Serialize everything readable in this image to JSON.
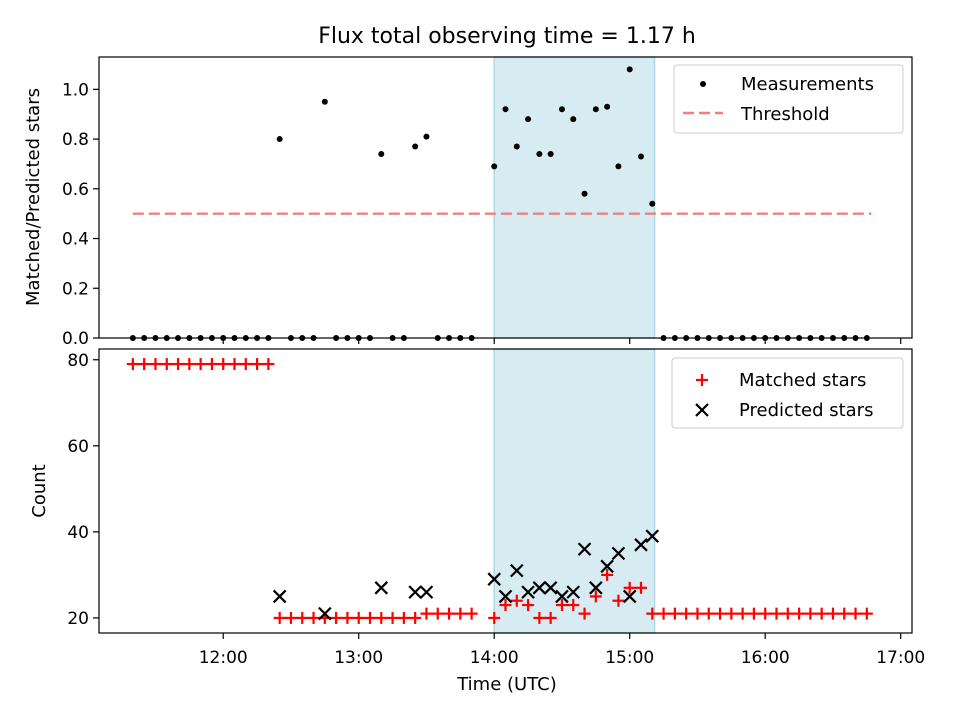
{
  "title": "Flux total observing time = 1.17 h",
  "colors": {
    "highlight": "#add8e6",
    "threshold": "#f08080",
    "matched": "#ff0000",
    "predicted": "#000000",
    "measurement": "#000000"
  },
  "chart_data": [
    {
      "type": "scatter",
      "ylabel": "Matched/Predicted stars",
      "ylim": [
        0,
        1.13
      ],
      "yticks": [
        "0.0",
        "0.2",
        "0.4",
        "0.6",
        "0.8",
        "1.0"
      ],
      "highlight_window": [
        "14:00",
        "15:11"
      ],
      "legend": {
        "placement": "upper right",
        "entries": [
          "Measurements",
          "Threshold"
        ]
      },
      "threshold": {
        "name": "Threshold",
        "value": 0.5,
        "x_range": [
          "11:20",
          "16:47"
        ]
      },
      "series": [
        {
          "name": "Measurements",
          "marker": "dot",
          "points": [
            [
              "11:20",
              0
            ],
            [
              "11:25",
              0
            ],
            [
              "11:30",
              0
            ],
            [
              "11:35",
              0
            ],
            [
              "11:40",
              0
            ],
            [
              "11:45",
              0
            ],
            [
              "11:50",
              0
            ],
            [
              "11:55",
              0
            ],
            [
              "12:00",
              0
            ],
            [
              "12:05",
              0
            ],
            [
              "12:10",
              0
            ],
            [
              "12:15",
              0
            ],
            [
              "12:20",
              0
            ],
            [
              "12:25",
              0.8
            ],
            [
              "12:30",
              0
            ],
            [
              "12:35",
              0
            ],
            [
              "12:40",
              0
            ],
            [
              "12:45",
              0.95
            ],
            [
              "12:50",
              0
            ],
            [
              "12:55",
              0
            ],
            [
              "13:00",
              0
            ],
            [
              "13:05",
              0
            ],
            [
              "13:10",
              0.74
            ],
            [
              "13:15",
              0
            ],
            [
              "13:20",
              0
            ],
            [
              "13:25",
              0.77
            ],
            [
              "13:30",
              0.81
            ],
            [
              "13:35",
              0
            ],
            [
              "13:40",
              0
            ],
            [
              "13:45",
              0
            ],
            [
              "13:50",
              0
            ],
            [
              "14:00",
              0.69
            ],
            [
              "14:05",
              0.92
            ],
            [
              "14:10",
              0.77
            ],
            [
              "14:15",
              0.88
            ],
            [
              "14:20",
              0.74
            ],
            [
              "14:25",
              0.74
            ],
            [
              "14:30",
              0.92
            ],
            [
              "14:35",
              0.88
            ],
            [
              "14:40",
              0.58
            ],
            [
              "14:45",
              0.92
            ],
            [
              "14:50",
              0.93
            ],
            [
              "14:55",
              0.69
            ],
            [
              "15:00",
              1.08
            ],
            [
              "15:05",
              0.73
            ],
            [
              "15:10",
              0.54
            ],
            [
              "15:15",
              0
            ],
            [
              "15:20",
              0
            ],
            [
              "15:25",
              0
            ],
            [
              "15:30",
              0
            ],
            [
              "15:35",
              0
            ],
            [
              "15:40",
              0
            ],
            [
              "15:45",
              0
            ],
            [
              "15:50",
              0
            ],
            [
              "15:55",
              0
            ],
            [
              "16:00",
              0
            ],
            [
              "16:05",
              0
            ],
            [
              "16:10",
              0
            ],
            [
              "16:15",
              0
            ],
            [
              "16:20",
              0
            ],
            [
              "16:25",
              0
            ],
            [
              "16:30",
              0
            ],
            [
              "16:35",
              0
            ],
            [
              "16:40",
              0
            ],
            [
              "16:45",
              0
            ]
          ]
        }
      ]
    },
    {
      "type": "scatter",
      "xlabel": "Time (UTC)",
      "ylabel": "Count",
      "ylim": [
        16.5,
        82.5
      ],
      "yticks": [
        "20",
        "40",
        "60",
        "80"
      ],
      "xlim": [
        "11:05",
        "17:05"
      ],
      "xticks": [
        "12:00",
        "13:00",
        "14:00",
        "15:00",
        "16:00",
        "17:00"
      ],
      "highlight_window": [
        "14:00",
        "15:11"
      ],
      "legend": {
        "placement": "upper right",
        "entries": [
          "Matched stars",
          "Predicted stars"
        ]
      },
      "series": [
        {
          "name": "Matched stars",
          "marker": "plus",
          "points": [
            [
              "11:20",
              79
            ],
            [
              "11:25",
              79
            ],
            [
              "11:30",
              79
            ],
            [
              "11:35",
              79
            ],
            [
              "11:40",
              79
            ],
            [
              "11:45",
              79
            ],
            [
              "11:50",
              79
            ],
            [
              "11:55",
              79
            ],
            [
              "12:00",
              79
            ],
            [
              "12:05",
              79
            ],
            [
              "12:10",
              79
            ],
            [
              "12:15",
              79
            ],
            [
              "12:20",
              79
            ],
            [
              "12:25",
              20
            ],
            [
              "12:30",
              20
            ],
            [
              "12:35",
              20
            ],
            [
              "12:40",
              20
            ],
            [
              "12:45",
              20
            ],
            [
              "12:50",
              20
            ],
            [
              "12:55",
              20
            ],
            [
              "13:00",
              20
            ],
            [
              "13:05",
              20
            ],
            [
              "13:10",
              20
            ],
            [
              "13:15",
              20
            ],
            [
              "13:20",
              20
            ],
            [
              "13:25",
              20
            ],
            [
              "13:30",
              21
            ],
            [
              "13:35",
              21
            ],
            [
              "13:40",
              21
            ],
            [
              "13:45",
              21
            ],
            [
              "13:50",
              21
            ],
            [
              "14:00",
              20
            ],
            [
              "14:05",
              23
            ],
            [
              "14:10",
              24
            ],
            [
              "14:15",
              23
            ],
            [
              "14:20",
              20
            ],
            [
              "14:25",
              20
            ],
            [
              "14:30",
              23
            ],
            [
              "14:35",
              23
            ],
            [
              "14:40",
              21
            ],
            [
              "14:45",
              25
            ],
            [
              "14:50",
              30
            ],
            [
              "14:55",
              24
            ],
            [
              "15:00",
              27
            ],
            [
              "15:05",
              27
            ],
            [
              "15:10",
              21
            ],
            [
              "15:15",
              21
            ],
            [
              "15:20",
              21
            ],
            [
              "15:25",
              21
            ],
            [
              "15:30",
              21
            ],
            [
              "15:35",
              21
            ],
            [
              "15:40",
              21
            ],
            [
              "15:45",
              21
            ],
            [
              "15:50",
              21
            ],
            [
              "15:55",
              21
            ],
            [
              "16:00",
              21
            ],
            [
              "16:05",
              21
            ],
            [
              "16:10",
              21
            ],
            [
              "16:15",
              21
            ],
            [
              "16:20",
              21
            ],
            [
              "16:25",
              21
            ],
            [
              "16:30",
              21
            ],
            [
              "16:35",
              21
            ],
            [
              "16:40",
              21
            ],
            [
              "16:45",
              21
            ]
          ]
        },
        {
          "name": "Predicted stars",
          "marker": "x",
          "points": [
            [
              "12:25",
              25
            ],
            [
              "12:45",
              21
            ],
            [
              "13:10",
              27
            ],
            [
              "13:25",
              26
            ],
            [
              "13:30",
              26
            ],
            [
              "14:00",
              29
            ],
            [
              "14:05",
              25
            ],
            [
              "14:10",
              31
            ],
            [
              "14:15",
              26
            ],
            [
              "14:20",
              27
            ],
            [
              "14:25",
              27
            ],
            [
              "14:30",
              25
            ],
            [
              "14:35",
              26
            ],
            [
              "14:40",
              36
            ],
            [
              "14:45",
              27
            ],
            [
              "14:50",
              32
            ],
            [
              "14:55",
              35
            ],
            [
              "15:00",
              25
            ],
            [
              "15:05",
              37
            ],
            [
              "15:10",
              39
            ]
          ]
        }
      ]
    }
  ]
}
